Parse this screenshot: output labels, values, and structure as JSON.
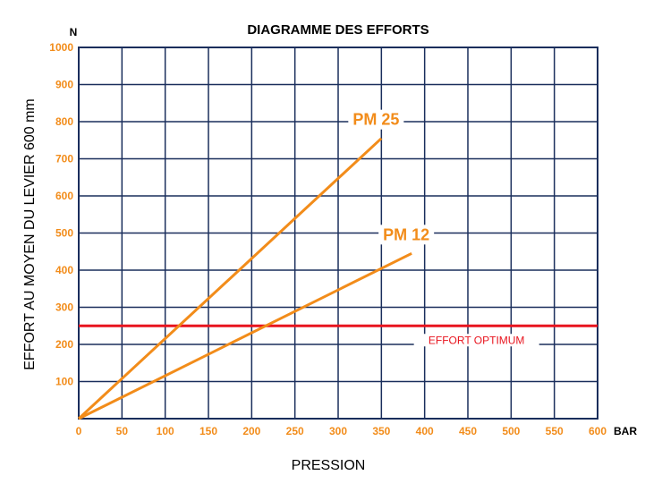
{
  "chart_data": {
    "type": "line",
    "title": "DIAGRAMME DES EFFORTS",
    "xlabel": "PRESSION",
    "ylabel": "EFFORT AU MOYEN DU LEVIER 600 mm",
    "x_unit": "BAR",
    "y_unit": "N",
    "xlim": [
      0,
      600
    ],
    "ylim": [
      0,
      1000
    ],
    "x_ticks": [
      "0",
      "50",
      "100",
      "150",
      "200",
      "250",
      "300",
      "350",
      "400",
      "450",
      "500",
      "550",
      "600"
    ],
    "y_ticks": [
      "100",
      "200",
      "300",
      "400",
      "500",
      "600",
      "700",
      "800",
      "900",
      "1000"
    ],
    "grid": true,
    "series": [
      {
        "name": "PM 25",
        "x": [
          0,
          350
        ],
        "y": [
          0,
          755
        ]
      },
      {
        "name": "PM 12",
        "x": [
          0,
          385
        ],
        "y": [
          0,
          445
        ]
      }
    ],
    "reference_line": {
      "label": "EFFORT OPTIMUM",
      "y": 250
    },
    "colors": {
      "grid": "#1a2e5c",
      "series": "#f28c1a",
      "reference": "#e8141e",
      "ticks": "#f28c1a"
    }
  }
}
